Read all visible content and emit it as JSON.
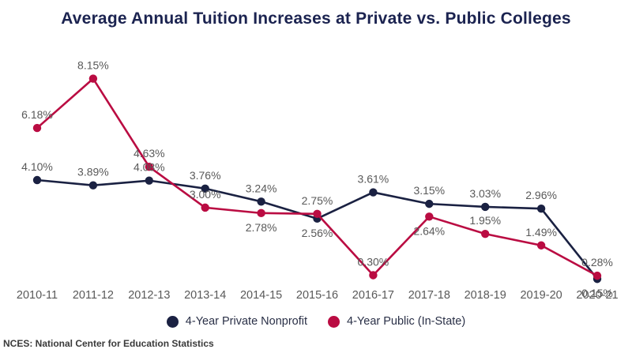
{
  "chart_data": {
    "type": "line",
    "title": "Average Annual Tuition Increases at Private vs. Public Colleges",
    "categories": [
      "2010-11",
      "2011-12",
      "2012-13",
      "2013-14",
      "2014-15",
      "2015-16",
      "2016-17",
      "2017-18",
      "2018-19",
      "2019-20",
      "2020-21"
    ],
    "series": [
      {
        "id": "private",
        "name": "4-Year Private Nonprofit",
        "color": "#1A2142",
        "values": [
          4.1,
          3.89,
          4.08,
          3.76,
          3.24,
          2.56,
          3.61,
          3.15,
          3.03,
          2.96,
          0.15
        ],
        "labels": [
          "4.10%",
          "3.89%",
          "4.08%",
          "3.76%",
          "3.24%",
          "2.56%",
          "3.61%",
          "3.15%",
          "3.03%",
          "2.96%",
          "0.15%"
        ],
        "label_pos": [
          "above",
          "above",
          "above",
          "above",
          "above",
          "below",
          "above",
          "above",
          "above",
          "above",
          "below"
        ]
      },
      {
        "id": "public",
        "name": "4-Year Public (In-State)",
        "color": "#BA0C42",
        "values": [
          6.18,
          8.15,
          4.63,
          3.0,
          2.78,
          2.75,
          0.3,
          2.64,
          1.95,
          1.49,
          0.28
        ],
        "labels": [
          "6.18%",
          "8.15%",
          "4.63%",
          "3.00%",
          "2.78%",
          "2.75%",
          "0.30%",
          "2.64%",
          "1.95%",
          "1.49%",
          "0.28%"
        ],
        "label_pos": [
          "above",
          "above",
          "above",
          "above",
          "below",
          "above",
          "above",
          "below",
          "above",
          "above",
          "above"
        ]
      }
    ],
    "ylim": [
      0,
      8.8
    ],
    "grid": false,
    "legend_position": "bottom",
    "source": "NCES: National Center for Education Statistics",
    "colors": {
      "title": "#1B2350",
      "data_label": "#595959",
      "axis_label": "#595959",
      "legend_text": "#2A3047",
      "source_text": "#3A3A3A"
    }
  }
}
